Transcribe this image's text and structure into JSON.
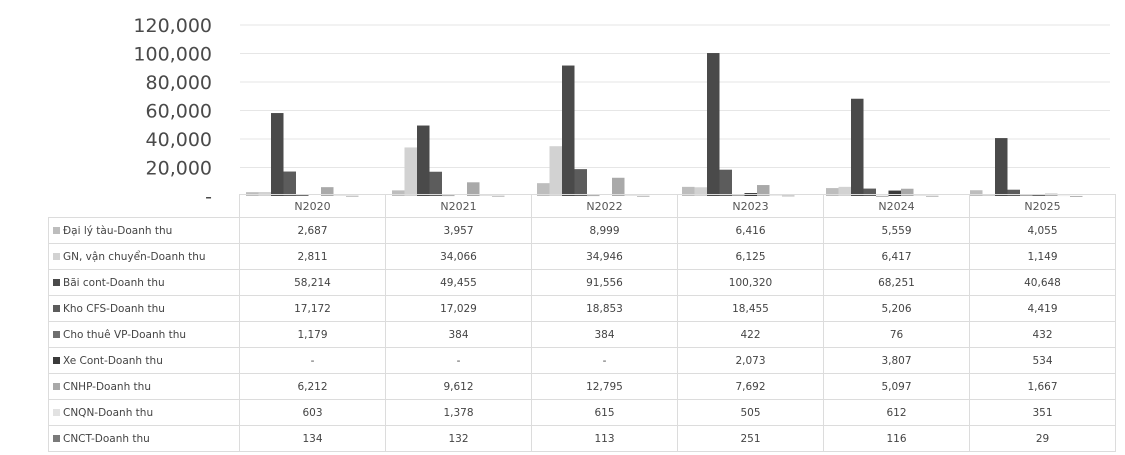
{
  "chart_data": {
    "type": "bar",
    "categories": [
      "N2020",
      "N2021",
      "N2022",
      "N2023",
      "N2024",
      "N2025"
    ],
    "yticks": [
      "120,000",
      "100,000",
      "80,000",
      "60,000",
      "40,000",
      "20,000",
      "-"
    ],
    "ylim": [
      0,
      120000
    ],
    "grid": true,
    "legend": "table-below",
    "series": [
      {
        "name": "Đại lý tàu-Doanh thu",
        "color": "#bdbdbd",
        "values": [
          2687,
          3957,
          8999,
          6416,
          5559,
          4055
        ],
        "labels": [
          "2,687",
          "3,957",
          "8,999",
          "6,416",
          "5,559",
          "4,055"
        ]
      },
      {
        "name": "GN, vận chuyển-Doanh thu",
        "color": "#d2d2d2",
        "values": [
          2811,
          34066,
          34946,
          6125,
          6417,
          1149
        ],
        "labels": [
          "2,811",
          "34,066",
          "34,946",
          "6,125",
          "6,417",
          "1,149"
        ]
      },
      {
        "name": "Bãi cont-Doanh thu",
        "color": "#4a4a4a",
        "values": [
          58214,
          49455,
          91556,
          100320,
          68251,
          40648
        ],
        "labels": [
          "58,214",
          "49,455",
          "91,556",
          "100,320",
          "68,251",
          "40,648"
        ]
      },
      {
        "name": "Kho CFS-Doanh thu",
        "color": "#5c5c5c",
        "values": [
          17172,
          17029,
          18853,
          18455,
          5206,
          4419
        ],
        "labels": [
          "17,172",
          "17,029",
          "18,853",
          "18,455",
          "5,206",
          "4,419"
        ]
      },
      {
        "name": "Cho thuê VP-Doanh thu",
        "color": "#6e6e6e",
        "values": [
          1179,
          384,
          384,
          422,
          76,
          432
        ],
        "labels": [
          "1,179",
          "384",
          "384",
          "422",
          "76",
          "432"
        ]
      },
      {
        "name": "Xe Cont-Doanh thu",
        "color": "#3a3a3a",
        "values": [
          0,
          0,
          0,
          2073,
          3807,
          534
        ],
        "labels": [
          "-",
          "-",
          "-",
          "2,073",
          "3,807",
          "534"
        ]
      },
      {
        "name": "CNHP-Doanh thu",
        "color": "#a9a9a9",
        "values": [
          6212,
          9612,
          12795,
          7692,
          5097,
          1667
        ],
        "labels": [
          "6,212",
          "9,612",
          "12,795",
          "7,692",
          "5,097",
          "1,667"
        ]
      },
      {
        "name": "CNQN-Doanh thu",
        "color": "#e2e2e2",
        "values": [
          603,
          1378,
          615,
          505,
          612,
          351
        ],
        "labels": [
          "603",
          "1,378",
          "615",
          "505",
          "612",
          "351"
        ]
      },
      {
        "name": "CNCT-Doanh thu",
        "color": "#7a7a7a",
        "values": [
          134,
          132,
          113,
          251,
          116,
          29
        ],
        "labels": [
          "134",
          "132",
          "113",
          "251",
          "116",
          "29"
        ]
      }
    ]
  }
}
